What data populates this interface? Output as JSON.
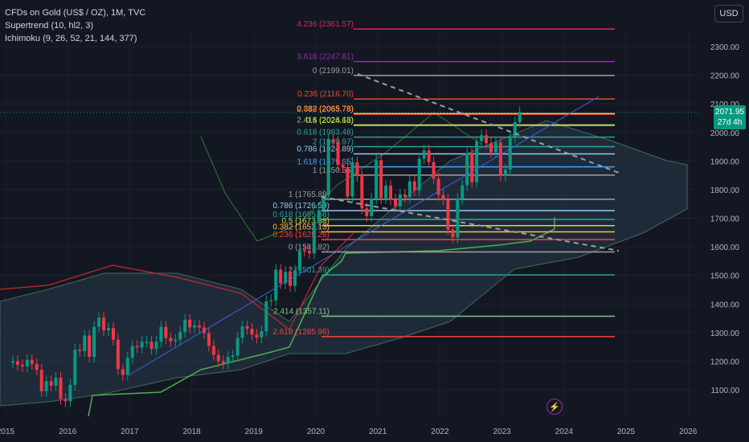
{
  "legend": {
    "symbol": "CFDs on Gold (US$ / OZ), 1M, TVC",
    "indicator1": "Supertrend (10, hl2, 3)",
    "indicator2": "Ichimoku (9, 26, 52, 21, 144, 377)"
  },
  "currency_button": "USD",
  "last_price": "2071.95",
  "countdown": "27d 4h",
  "colors": {
    "background": "#131722",
    "up": "#089981",
    "down": "#f23645",
    "grid": "#1e222d"
  },
  "chart_data": {
    "type": "candlestick",
    "x_ticks": [
      "2015",
      "2016",
      "2017",
      "2018",
      "2019",
      "2020",
      "2021",
      "2022",
      "2023",
      "2024",
      "2025",
      "2026"
    ],
    "y_ticks": [
      "2300.00",
      "2200.00",
      "2100.00",
      "2000.00",
      "1900.00",
      "1800.00",
      "1700.00",
      "1600.00",
      "1500.00",
      "1400.00",
      "1300.00",
      "1200.00",
      "1100.00"
    ],
    "ylim": [
      1000,
      2400
    ],
    "fib_upper": [
      {
        "label": "4.236 (2361.57)",
        "value": 2361.57,
        "color": "#e91e63"
      },
      {
        "label": "3.618 (2247.81)",
        "value": 2247.81,
        "color": "#9c27b0"
      },
      {
        "label": "0 (2199.01)",
        "value": 2199.01,
        "color": "#9e9e9e"
      },
      {
        "label": "0.236 (2116.70)",
        "value": 2116.7,
        "color": "#f44336"
      },
      {
        "label": "2.618 (2063.73)",
        "value": 2063.73,
        "color": "#f44336"
      },
      {
        "label": "0.382 (2065.78)",
        "value": 2065.78,
        "color": "#ffb74d"
      },
      {
        "label": "2.414 (2026.18)",
        "value": 2026.18,
        "color": "#81c784"
      },
      {
        "label": "0.5 (2024.63)",
        "value": 2024.63,
        "color": "#cddc39"
      },
      {
        "label": "0.618 (1983.48)",
        "value": 1983.48,
        "color": "#26a69a"
      },
      {
        "label": "2 (1949.97)",
        "value": 1949.97,
        "color": "#26a69a"
      },
      {
        "label": "0.786 (1924.89)",
        "value": 1924.89,
        "color": "#90caf9"
      },
      {
        "label": "1.618 (1879.65)",
        "value": 1879.65,
        "color": "#42a5f5"
      },
      {
        "label": "1 (1850.55)",
        "value": 1850.55,
        "color": "#9e9e9e"
      }
    ],
    "fib_lower": [
      {
        "label": "1 (1765.89)",
        "value": 1765.89,
        "color": "#9e9e9e"
      },
      {
        "label": "0.786 (1726.50)",
        "value": 1726.5,
        "color": "#90caf9"
      },
      {
        "label": "0.618 (1695.58)",
        "value": 1695.58,
        "color": "#26a69a"
      },
      {
        "label": "0.5 (1673.88)",
        "value": 1673.88,
        "color": "#cddc39"
      },
      {
        "label": "0.382 (1652.13)",
        "value": 1652.13,
        "color": "#ffb74d"
      },
      {
        "label": "0.236 (1625.26)",
        "value": 1625.26,
        "color": "#f44336"
      },
      {
        "label": "0 (1581.82)",
        "value": 1581.82,
        "color": "#9e9e9e"
      },
      {
        "label": "2 (1501.39)",
        "value": 1501.39,
        "color": "#26a69a"
      },
      {
        "label": "2.414 (1357.11)",
        "value": 1357.11,
        "color": "#81c784"
      },
      {
        "label": "2.618 (1285.96)",
        "value": 1285.96,
        "color": "#f44336"
      }
    ],
    "candles_close": [
      1200,
      1187,
      1182,
      1205,
      1190,
      1170,
      1095,
      1130,
      1115,
      1142,
      1068,
      1060,
      1117,
      1240,
      1235,
      1290,
      1215,
      1320,
      1352,
      1308,
      1316,
      1275,
      1172,
      1152,
      1212,
      1253,
      1248,
      1268,
      1268,
      1243,
      1268,
      1320,
      1281,
      1270,
      1275,
      1302,
      1345,
      1318,
      1325,
      1318,
      1298,
      1253,
      1222,
      1200,
      1192,
      1215,
      1220,
      1282,
      1322,
      1313,
      1293,
      1283,
      1305,
      1409,
      1413,
      1520,
      1472,
      1512,
      1463,
      1517,
      1588,
      1586,
      1577,
      1686,
      1728,
      1780,
      1975,
      1967,
      1886,
      1878,
      1776,
      1895,
      1847,
      1734,
      1707,
      1768,
      1903,
      1770,
      1814,
      1765,
      1742,
      1783,
      1774,
      1829,
      1797,
      1908,
      1937,
      1896,
      1838,
      1781,
      1765,
      1660,
      1633,
      1768,
      1815,
      1928,
      1826,
      1969,
      1990,
      1962,
      1930,
      1965,
      1848,
      1870,
      1984,
      2036,
      2071
    ]
  }
}
